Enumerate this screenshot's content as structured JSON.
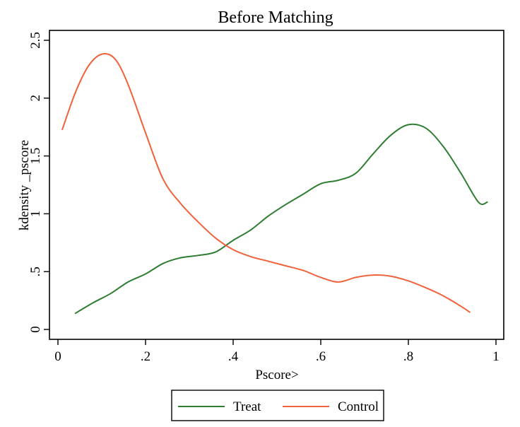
{
  "chart_data": {
    "type": "line",
    "title": "Before Matching",
    "xlabel": "Pscore>",
    "ylabel": "kdensity _pscore",
    "xlim": [
      0,
      1
    ],
    "ylim": [
      0,
      2.5
    ],
    "x_ticks": [
      {
        "value": 0,
        "label": "0"
      },
      {
        "value": 0.2,
        "label": ".2"
      },
      {
        "value": 0.4,
        "label": ".4"
      },
      {
        "value": 0.6,
        "label": ".6"
      },
      {
        "value": 0.8,
        "label": ".8"
      },
      {
        "value": 1,
        "label": "1"
      }
    ],
    "y_ticks": [
      {
        "value": 0,
        "label": "0"
      },
      {
        "value": 0.5,
        "label": ".5"
      },
      {
        "value": 1,
        "label": "1"
      },
      {
        "value": 1.5,
        "label": "1.5"
      },
      {
        "value": 2,
        "label": "2"
      },
      {
        "value": 2.5,
        "label": "2.5"
      }
    ],
    "grid": false,
    "legend_position": "bottom",
    "series": [
      {
        "name": "Treat",
        "color": "#2e7d32",
        "x": [
          0.04,
          0.08,
          0.12,
          0.16,
          0.2,
          0.24,
          0.28,
          0.32,
          0.36,
          0.4,
          0.44,
          0.48,
          0.52,
          0.56,
          0.6,
          0.64,
          0.68,
          0.72,
          0.76,
          0.8,
          0.84,
          0.88,
          0.92,
          0.96,
          0.98
        ],
        "y": [
          0.14,
          0.23,
          0.31,
          0.41,
          0.48,
          0.57,
          0.62,
          0.64,
          0.67,
          0.77,
          0.86,
          0.98,
          1.08,
          1.17,
          1.26,
          1.29,
          1.35,
          1.52,
          1.68,
          1.77,
          1.74,
          1.58,
          1.35,
          1.1,
          1.1
        ]
      },
      {
        "name": "Control",
        "color": "#f0623c",
        "x": [
          0.01,
          0.04,
          0.07,
          0.1,
          0.13,
          0.16,
          0.2,
          0.24,
          0.28,
          0.32,
          0.36,
          0.4,
          0.44,
          0.48,
          0.52,
          0.56,
          0.6,
          0.64,
          0.68,
          0.72,
          0.76,
          0.8,
          0.84,
          0.88,
          0.92,
          0.94
        ],
        "y": [
          1.73,
          2.05,
          2.28,
          2.38,
          2.34,
          2.12,
          1.7,
          1.3,
          1.09,
          0.93,
          0.79,
          0.69,
          0.63,
          0.59,
          0.55,
          0.51,
          0.45,
          0.41,
          0.45,
          0.47,
          0.46,
          0.42,
          0.36,
          0.29,
          0.2,
          0.15
        ]
      }
    ]
  }
}
